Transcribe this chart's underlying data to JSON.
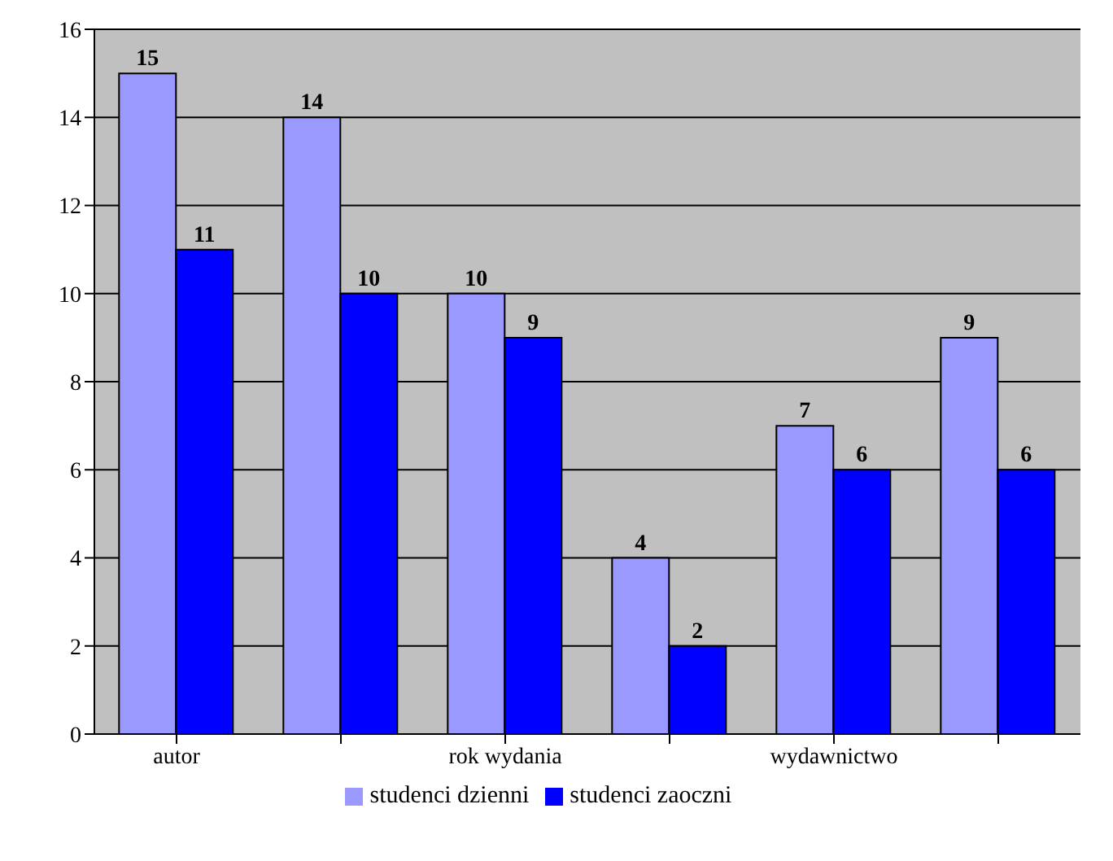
{
  "chart_data": {
    "type": "bar",
    "categories": [
      "autor",
      null,
      "rok wydania",
      null,
      "wydawnictwo",
      null
    ],
    "series": [
      {
        "name": "studenci dzienni",
        "color": "#9999ff",
        "values": [
          15,
          14,
          10,
          4,
          7,
          9
        ]
      },
      {
        "name": "studenci zaoczni",
        "color": "#0000ff",
        "values": [
          11,
          10,
          9,
          2,
          6,
          6
        ]
      }
    ],
    "ylim": [
      0,
      16
    ],
    "yticks": [
      0,
      2,
      4,
      6,
      8,
      10,
      12,
      14,
      16
    ],
    "grid": "y",
    "legend": "bottom",
    "data_labels": true
  }
}
